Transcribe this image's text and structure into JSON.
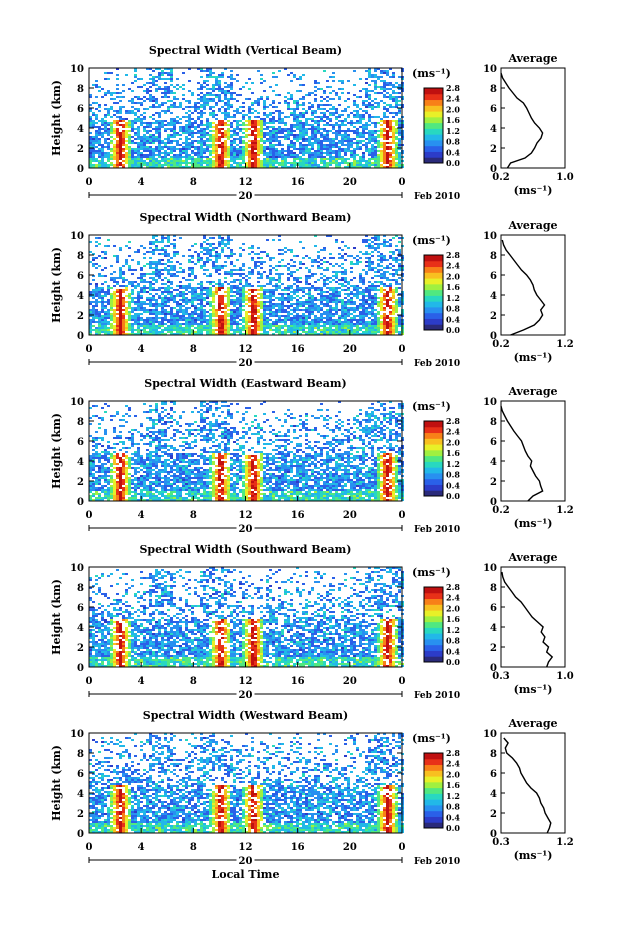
{
  "colormap": [
    "#2a2a7a",
    "#2c3cc8",
    "#2a60e8",
    "#2890f0",
    "#22b8e8",
    "#28d8c0",
    "#50e880",
    "#a0f040",
    "#e8f028",
    "#f8c020",
    "#f88018",
    "#e83018",
    "#c01010"
  ],
  "panels_data": [
    {
      "title": "Spectral Width (Vertical Beam)",
      "ylabel": "Height (km)",
      "yticks": [
        "0",
        "2",
        "4",
        "6",
        "8",
        "10"
      ],
      "xticks": [
        "0",
        "4",
        "8",
        "12",
        "16",
        "20",
        "0"
      ],
      "day_label": "20",
      "month_label": "Feb 2010",
      "cb_unit": "(ms⁻¹)",
      "cb_ticks": [
        "0.0",
        "0.4",
        "0.8",
        "1.2",
        "1.6",
        "2.0",
        "2.4",
        "2.8"
      ],
      "avg_title": "Average",
      "avg_xticks": [
        "0.2",
        "1.0"
      ],
      "avg_xlim": [
        0.2,
        1.0
      ],
      "avg_yticks": [
        "0",
        "2",
        "4",
        "6",
        "8",
        "10"
      ],
      "avg_unit": "(ms⁻¹)",
      "avg_profile": [
        [
          0.28,
          0.0
        ],
        [
          0.32,
          0.5
        ],
        [
          0.5,
          1.0
        ],
        [
          0.58,
          1.5
        ],
        [
          0.62,
          2.0
        ],
        [
          0.65,
          2.5
        ],
        [
          0.7,
          3.0
        ],
        [
          0.72,
          3.5
        ],
        [
          0.68,
          4.0
        ],
        [
          0.62,
          4.5
        ],
        [
          0.58,
          5.0
        ],
        [
          0.55,
          5.5
        ],
        [
          0.52,
          6.0
        ],
        [
          0.48,
          6.5
        ],
        [
          0.4,
          7.0
        ],
        [
          0.35,
          7.5
        ],
        [
          0.3,
          8.0
        ],
        [
          0.26,
          8.5
        ],
        [
          0.22,
          9.0
        ],
        [
          0.2,
          9.5
        ]
      ]
    },
    {
      "title": "Spectral Width (Northward Beam)",
      "ylabel": "Height (km)",
      "yticks": [
        "0",
        "2",
        "4",
        "6",
        "8",
        "10"
      ],
      "xticks": [
        "0",
        "4",
        "8",
        "12",
        "16",
        "20",
        "0"
      ],
      "day_label": "20",
      "month_label": "Feb 2010",
      "cb_unit": "(ms⁻¹)",
      "cb_ticks": [
        "0.0",
        "0.4",
        "0.8",
        "1.2",
        "1.6",
        "2.0",
        "2.4",
        "2.8"
      ],
      "avg_title": "Average",
      "avg_xticks": [
        "0.2",
        "1.2"
      ],
      "avg_xlim": [
        0.2,
        1.2
      ],
      "avg_yticks": [
        "0",
        "2",
        "4",
        "6",
        "8",
        "10"
      ],
      "avg_unit": "(ms⁻¹)",
      "avg_profile": [
        [
          0.35,
          0.0
        ],
        [
          0.55,
          0.5
        ],
        [
          0.72,
          1.0
        ],
        [
          0.8,
          1.5
        ],
        [
          0.85,
          2.0
        ],
        [
          0.82,
          2.5
        ],
        [
          0.88,
          3.0
        ],
        [
          0.82,
          3.5
        ],
        [
          0.76,
          4.0
        ],
        [
          0.72,
          4.5
        ],
        [
          0.7,
          5.0
        ],
        [
          0.66,
          5.5
        ],
        [
          0.6,
          6.0
        ],
        [
          0.52,
          6.5
        ],
        [
          0.46,
          7.0
        ],
        [
          0.4,
          7.5
        ],
        [
          0.34,
          8.0
        ],
        [
          0.28,
          8.5
        ],
        [
          0.24,
          9.0
        ],
        [
          0.22,
          9.5
        ]
      ]
    },
    {
      "title": "Spectral Width (Eastward Beam)",
      "ylabel": "Height (km)",
      "yticks": [
        "0",
        "2",
        "4",
        "6",
        "8",
        "10"
      ],
      "xticks": [
        "0",
        "4",
        "8",
        "12",
        "16",
        "20",
        "0"
      ],
      "day_label": "20",
      "month_label": "Feb 2010",
      "cb_unit": "(ms⁻¹)",
      "cb_ticks": [
        "0.0",
        "0.4",
        "0.8",
        "1.2",
        "1.6",
        "2.0",
        "2.4",
        "2.8"
      ],
      "avg_title": "Average",
      "avg_xticks": [
        "0.2",
        "1.2"
      ],
      "avg_xlim": [
        0.2,
        1.2
      ],
      "avg_yticks": [
        "0",
        "2",
        "4",
        "6",
        "8",
        "10"
      ],
      "avg_unit": "(ms⁻¹)",
      "avg_profile": [
        [
          0.62,
          0.0
        ],
        [
          0.7,
          0.5
        ],
        [
          0.85,
          1.0
        ],
        [
          0.82,
          1.5
        ],
        [
          0.8,
          2.0
        ],
        [
          0.74,
          2.5
        ],
        [
          0.7,
          3.0
        ],
        [
          0.66,
          3.5
        ],
        [
          0.68,
          4.0
        ],
        [
          0.62,
          4.5
        ],
        [
          0.58,
          5.0
        ],
        [
          0.55,
          5.5
        ],
        [
          0.52,
          6.0
        ],
        [
          0.46,
          6.5
        ],
        [
          0.4,
          7.0
        ],
        [
          0.35,
          7.5
        ],
        [
          0.3,
          8.0
        ],
        [
          0.26,
          8.5
        ],
        [
          0.22,
          9.0
        ],
        [
          0.2,
          9.5
        ]
      ]
    },
    {
      "title": "Spectral Width (Southward Beam)",
      "ylabel": "Height (km)",
      "yticks": [
        "0",
        "2",
        "4",
        "6",
        "8",
        "10"
      ],
      "xticks": [
        "0",
        "4",
        "8",
        "12",
        "16",
        "20",
        "0"
      ],
      "day_label": "20",
      "month_label": "Feb 2010",
      "cb_unit": "(ms⁻¹)",
      "cb_ticks": [
        "0.0",
        "0.4",
        "0.8",
        "1.2",
        "1.6",
        "2.0",
        "2.4",
        "2.8"
      ],
      "avg_title": "Average",
      "avg_xticks": [
        "0.3",
        "1.0"
      ],
      "avg_xlim": [
        0.3,
        1.0
      ],
      "avg_yticks": [
        "0",
        "2",
        "4",
        "6",
        "8",
        "10"
      ],
      "avg_unit": "(ms⁻¹)",
      "avg_profile": [
        [
          0.8,
          0.0
        ],
        [
          0.82,
          0.5
        ],
        [
          0.86,
          1.0
        ],
        [
          0.8,
          1.5
        ],
        [
          0.82,
          2.0
        ],
        [
          0.76,
          2.5
        ],
        [
          0.78,
          3.0
        ],
        [
          0.74,
          3.5
        ],
        [
          0.76,
          4.0
        ],
        [
          0.7,
          4.5
        ],
        [
          0.64,
          5.0
        ],
        [
          0.6,
          5.5
        ],
        [
          0.56,
          6.0
        ],
        [
          0.52,
          6.5
        ],
        [
          0.46,
          7.0
        ],
        [
          0.42,
          7.5
        ],
        [
          0.38,
          8.0
        ],
        [
          0.34,
          8.5
        ],
        [
          0.32,
          9.0
        ],
        [
          0.31,
          9.5
        ]
      ]
    },
    {
      "title": "Spectral Width (Westward Beam)",
      "ylabel": "Height (km)",
      "yticks": [
        "0",
        "2",
        "4",
        "6",
        "8",
        "10"
      ],
      "xticks": [
        "0",
        "4",
        "8",
        "12",
        "16",
        "20",
        "0"
      ],
      "day_label": "20",
      "month_label": "Feb 2010",
      "xlabel": "Local Time",
      "cb_unit": "(ms⁻¹)",
      "cb_ticks": [
        "0.0",
        "0.4",
        "0.8",
        "1.2",
        "1.6",
        "2.0",
        "2.4",
        "2.8"
      ],
      "avg_title": "Average",
      "avg_xticks": [
        "0.3",
        "1.2"
      ],
      "avg_xlim": [
        0.3,
        1.2
      ],
      "avg_yticks": [
        "0",
        "2",
        "4",
        "6",
        "8",
        "10"
      ],
      "avg_unit": "(ms⁻¹)",
      "avg_profile": [
        [
          0.95,
          0.0
        ],
        [
          0.98,
          0.5
        ],
        [
          1.0,
          1.0
        ],
        [
          0.96,
          1.5
        ],
        [
          0.92,
          2.0
        ],
        [
          0.9,
          2.5
        ],
        [
          0.86,
          3.0
        ],
        [
          0.84,
          3.5
        ],
        [
          0.8,
          4.0
        ],
        [
          0.72,
          4.5
        ],
        [
          0.66,
          5.0
        ],
        [
          0.62,
          5.5
        ],
        [
          0.58,
          6.0
        ],
        [
          0.56,
          6.5
        ],
        [
          0.52,
          7.0
        ],
        [
          0.46,
          7.5
        ],
        [
          0.38,
          8.0
        ],
        [
          0.36,
          8.5
        ],
        [
          0.4,
          9.0
        ],
        [
          0.34,
          9.5
        ]
      ]
    }
  ],
  "chart_data": [
    {
      "type": "heatmap",
      "title": "Spectral Width (Vertical Beam)",
      "xlabel": "",
      "ylabel": "Height (km)",
      "xlim": [
        0,
        24
      ],
      "ylim": [
        0,
        10
      ],
      "colorbar_range": [
        0.0,
        2.8
      ]
    },
    {
      "type": "line",
      "title": "Average",
      "xlim": [
        0.2,
        1.0
      ],
      "ylim": [
        0,
        10
      ]
    },
    {
      "type": "heatmap",
      "title": "Spectral Width (Northward Beam)",
      "xlabel": "",
      "ylabel": "Height (km)",
      "xlim": [
        0,
        24
      ],
      "ylim": [
        0,
        10
      ],
      "colorbar_range": [
        0.0,
        2.8
      ]
    },
    {
      "type": "line",
      "title": "Average",
      "xlim": [
        0.2,
        1.2
      ],
      "ylim": [
        0,
        10
      ]
    },
    {
      "type": "heatmap",
      "title": "Spectral Width (Eastward Beam)",
      "xlabel": "",
      "ylabel": "Height (km)",
      "xlim": [
        0,
        24
      ],
      "ylim": [
        0,
        10
      ],
      "colorbar_range": [
        0.0,
        2.8
      ]
    },
    {
      "type": "line",
      "title": "Average",
      "xlim": [
        0.2,
        1.2
      ],
      "ylim": [
        0,
        10
      ]
    },
    {
      "type": "heatmap",
      "title": "Spectral Width (Southward Beam)",
      "xlabel": "",
      "ylabel": "Height (km)",
      "xlim": [
        0,
        24
      ],
      "ylim": [
        0,
        10
      ],
      "colorbar_range": [
        0.0,
        2.8
      ]
    },
    {
      "type": "line",
      "title": "Average",
      "xlim": [
        0.3,
        1.0
      ],
      "ylim": [
        0,
        10
      ]
    },
    {
      "type": "heatmap",
      "title": "Spectral Width (Westward Beam)",
      "xlabel": "Local Time",
      "ylabel": "Height (km)",
      "xlim": [
        0,
        24
      ],
      "ylim": [
        0,
        10
      ],
      "colorbar_range": [
        0.0,
        2.8
      ]
    },
    {
      "type": "line",
      "title": "Average",
      "xlim": [
        0.3,
        1.2
      ],
      "ylim": [
        0,
        10
      ]
    }
  ]
}
